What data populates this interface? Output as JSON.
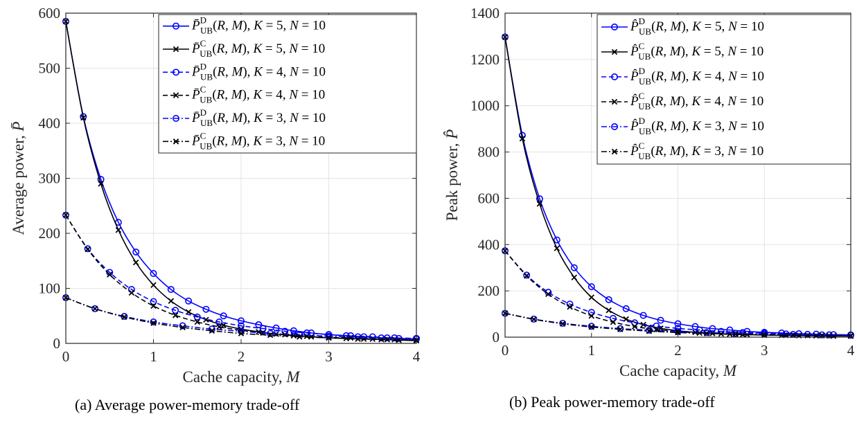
{
  "chart_data": [
    {
      "type": "line",
      "caption": "(a) Average power-memory trade-off",
      "xlabel": "Cache capacity, M",
      "ylabel": "Average power, P̄",
      "xlim": [
        0,
        4
      ],
      "ylim": [
        0,
        600
      ],
      "xticks": [
        0,
        1,
        2,
        3,
        4
      ],
      "yticks": [
        0,
        100,
        200,
        300,
        400,
        500,
        600
      ],
      "grid": true,
      "legend_position": "top-right",
      "series": [
        {
          "name": "P̄ᴰ_UB(R, M), K = 5, N = 10",
          "color": "#0000ff",
          "dash": "solid",
          "marker": "circle",
          "x": [
            0,
            0.2,
            0.4,
            0.6,
            0.8,
            1.0,
            1.2,
            1.4,
            1.6,
            1.8,
            2.0,
            2.2,
            2.4,
            2.6,
            2.8,
            3.0,
            3.2,
            3.4,
            3.6,
            3.8,
            4.0
          ],
          "y": [
            585,
            412,
            298,
            220,
            166,
            127,
            98,
            77,
            62,
            50,
            41,
            34,
            28,
            23,
            19,
            16,
            14,
            12,
            10,
            9,
            8
          ]
        },
        {
          "name": "P̄ᶜ_UB(R, M), K = 5, N = 10",
          "color": "#000000",
          "dash": "solid",
          "marker": "x",
          "x": [
            0,
            0.2,
            0.4,
            0.6,
            0.8,
            1.0,
            1.2,
            1.4,
            1.6,
            1.8,
            2.0,
            2.2,
            2.4,
            2.6,
            2.8,
            3.0,
            3.2,
            3.4,
            3.6,
            3.8,
            4.0
          ],
          "y": [
            585,
            410,
            290,
            206,
            147,
            106,
            77,
            57,
            43,
            33,
            26,
            21,
            17,
            14,
            12,
            10,
            9,
            8,
            7,
            6,
            5
          ]
        },
        {
          "name": "P̄ᴰ_UB(R, M), K = 4, N = 10",
          "color": "#0000ff",
          "dash": "dashed",
          "marker": "circle",
          "x": [
            0,
            0.25,
            0.5,
            0.75,
            1.0,
            1.25,
            1.5,
            1.75,
            2.0,
            2.25,
            2.5,
            2.75,
            3.0,
            3.25,
            3.5,
            3.75,
            4.0
          ],
          "y": [
            233,
            172,
            129,
            98,
            76,
            60,
            48,
            39,
            32,
            27,
            22,
            19,
            16,
            14,
            12,
            10,
            9
          ]
        },
        {
          "name": "P̄ᶜ_UB(R, M), K = 4, N = 10",
          "color": "#000000",
          "dash": "dashed",
          "marker": "x",
          "x": [
            0,
            0.25,
            0.5,
            0.75,
            1.0,
            1.25,
            1.5,
            1.75,
            2.0,
            2.25,
            2.5,
            2.75,
            3.0,
            3.25,
            3.5,
            3.75,
            4.0
          ],
          "y": [
            233,
            171,
            125,
            92,
            68,
            51,
            39,
            30,
            24,
            19,
            16,
            13,
            11,
            10,
            8,
            7,
            6
          ]
        },
        {
          "name": "P̄ᴰ_UB(R, M), K = 3, N = 10",
          "color": "#0000ff",
          "dash": "dashdot",
          "marker": "circle",
          "x": [
            0,
            0.333,
            0.667,
            1.0,
            1.333,
            1.667,
            2.0,
            2.333,
            2.667,
            3.0,
            3.333,
            3.667,
            4.0
          ],
          "y": [
            83,
            63,
            49,
            39,
            32,
            26,
            22,
            18,
            16,
            13,
            12,
            10,
            9
          ]
        },
        {
          "name": "P̄ᶜ_UB(R, M), K = 3, N = 10",
          "color": "#000000",
          "dash": "dashdot",
          "marker": "x",
          "x": [
            0,
            0.333,
            0.667,
            1.0,
            1.333,
            1.667,
            2.0,
            2.333,
            2.667,
            3.0,
            3.333,
            3.667,
            4.0
          ],
          "y": [
            83,
            63,
            48,
            37,
            29,
            23,
            18,
            15,
            12,
            10,
            8,
            7,
            6
          ]
        }
      ]
    },
    {
      "type": "line",
      "caption": "(b) Peak power-memory trade-off",
      "xlabel": "Cache capacity, M",
      "ylabel": "Peak power, P̂",
      "xlim": [
        0,
        4
      ],
      "ylim": [
        0,
        1400
      ],
      "xticks": [
        0,
        1,
        2,
        3,
        4
      ],
      "yticks": [
        0,
        200,
        400,
        600,
        800,
        1000,
        1200,
        1400
      ],
      "grid": true,
      "legend_position": "top-right",
      "series": [
        {
          "name": "P̂ᴰ_UB(R, M), K = 5, N = 10",
          "color": "#0000ff",
          "dash": "solid",
          "marker": "circle",
          "x": [
            0,
            0.2,
            0.4,
            0.6,
            0.8,
            1.0,
            1.2,
            1.4,
            1.6,
            1.8,
            2.0,
            2.2,
            2.4,
            2.6,
            2.8,
            3.0,
            3.2,
            3.4,
            3.6,
            3.8,
            4.0
          ],
          "y": [
            1297,
            872,
            598,
            420,
            300,
            218,
            162,
            123,
            94,
            73,
            58,
            46,
            37,
            31,
            25,
            21,
            18,
            15,
            13,
            11,
            10
          ]
        },
        {
          "name": "P̂ᶜ_UB(R, M), K = 5, N = 10",
          "color": "#000000",
          "dash": "solid",
          "marker": "x",
          "x": [
            0,
            0.2,
            0.4,
            0.6,
            0.8,
            1.0,
            1.2,
            1.4,
            1.6,
            1.8,
            2.0,
            2.2,
            2.4,
            2.6,
            2.8,
            3.0,
            3.2,
            3.4,
            3.6,
            3.8,
            4.0
          ],
          "y": [
            1297,
            858,
            576,
            384,
            258,
            172,
            116,
            78,
            54,
            38,
            28,
            21,
            16,
            13,
            11,
            9,
            8,
            7,
            6,
            5,
            5
          ]
        },
        {
          "name": "P̂ᴰ_UB(R, M), K = 4, N = 10",
          "color": "#0000ff",
          "dash": "dashed",
          "marker": "circle",
          "x": [
            0,
            0.25,
            0.5,
            0.75,
            1.0,
            1.25,
            1.5,
            1.75,
            2.0,
            2.25,
            2.5,
            2.75,
            3.0,
            3.25,
            3.5,
            3.75,
            4.0
          ],
          "y": [
            373,
            268,
            194,
            143,
            107,
            81,
            62,
            48,
            38,
            31,
            25,
            20,
            17,
            14,
            12,
            10,
            9
          ]
        },
        {
          "name": "P̂ᶜ_UB(R, M), K = 4, N = 10",
          "color": "#000000",
          "dash": "dashed",
          "marker": "x",
          "x": [
            0,
            0.25,
            0.5,
            0.75,
            1.0,
            1.25,
            1.5,
            1.75,
            2.0,
            2.25,
            2.5,
            2.75,
            3.0,
            3.25,
            3.5,
            3.75,
            4.0
          ],
          "y": [
            373,
            265,
            186,
            131,
            92,
            65,
            46,
            33,
            24,
            18,
            14,
            11,
            9,
            8,
            7,
            6,
            5
          ]
        },
        {
          "name": "P̂ᴰ_UB(R, M), K = 3, N = 10",
          "color": "#0000ff",
          "dash": "dashdot",
          "marker": "circle",
          "x": [
            0,
            0.333,
            0.667,
            1.0,
            1.333,
            1.667,
            2.0,
            2.333,
            2.667,
            3.0,
            3.333,
            3.667,
            4.0
          ],
          "y": [
            103,
            78,
            60,
            47,
            37,
            30,
            24,
            20,
            16,
            14,
            12,
            10,
            9
          ]
        },
        {
          "name": "P̂ᶜ_UB(R, M), K = 3, N = 10",
          "color": "#000000",
          "dash": "dashdot",
          "marker": "x",
          "x": [
            0,
            0.333,
            0.667,
            1.0,
            1.333,
            1.667,
            2.0,
            2.333,
            2.667,
            3.0,
            3.333,
            3.667,
            4.0
          ],
          "y": [
            103,
            77,
            58,
            44,
            34,
            26,
            20,
            16,
            13,
            10,
            8,
            7,
            6
          ]
        }
      ]
    }
  ]
}
